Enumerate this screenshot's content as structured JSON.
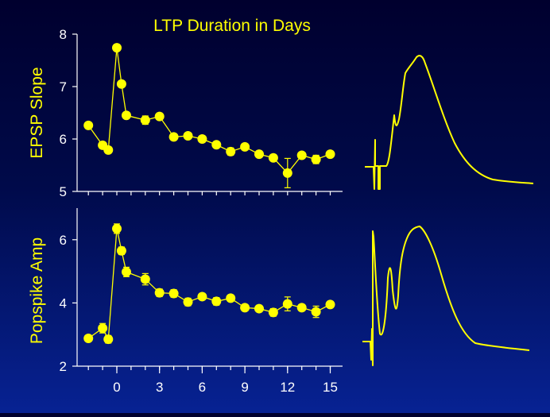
{
  "colors": {
    "accent": "#ffff00",
    "axis": "#ffffff",
    "background_top": "#00002e",
    "background_bottom": "#072293"
  },
  "title": "LTP Duration in Days",
  "chart_data": [
    {
      "type": "scatter",
      "connected": true,
      "error_bars": true,
      "ylabel": "EPSP Slope",
      "xlabel": "",
      "ylim": [
        5,
        8
      ],
      "yticks": [
        "5",
        "6",
        "7",
        "8"
      ],
      "xlim": [
        -2.5,
        16
      ],
      "series": [
        {
          "x": [
            -2,
            -1,
            -0.6,
            0,
            0.33,
            0.67,
            2,
            3,
            4,
            5,
            6,
            7,
            8,
            9,
            10,
            11,
            12,
            13,
            14,
            15
          ],
          "y": [
            6.26,
            5.88,
            5.79,
            7.74,
            7.05,
            6.45,
            6.36,
            6.43,
            6.04,
            6.06,
            6.0,
            5.89,
            5.76,
            5.85,
            5.71,
            5.64,
            5.35,
            5.69,
            5.61,
            5.71
          ],
          "err": [
            0.03,
            0.04,
            0.06,
            0.06,
            0.05,
            0.04,
            0.08,
            0.05,
            0.06,
            0.05,
            0.06,
            0.05,
            0.07,
            0.05,
            0.05,
            0.06,
            0.28,
            0.05,
            0.08,
            0.05
          ]
        }
      ]
    },
    {
      "type": "scatter",
      "connected": true,
      "error_bars": true,
      "ylabel": "Popspike Amp",
      "xlabel": "",
      "ylim": [
        2,
        7
      ],
      "yticks": [
        "2",
        "4",
        "6"
      ],
      "xlim": [
        -2.5,
        16
      ],
      "xticks": [
        "0",
        "3",
        "6",
        "9",
        "12",
        "15"
      ],
      "series": [
        {
          "x": [
            -2,
            -1,
            -0.6,
            0,
            0.33,
            0.67,
            2,
            3,
            4,
            5,
            6,
            7,
            8,
            9,
            10,
            11,
            12,
            13,
            14,
            15
          ],
          "y": [
            2.88,
            3.2,
            2.85,
            6.35,
            5.65,
            4.98,
            4.75,
            4.32,
            4.3,
            4.03,
            4.2,
            4.05,
            4.15,
            3.85,
            3.82,
            3.7,
            3.97,
            3.85,
            3.72,
            3.95
          ],
          "err": [
            0.08,
            0.15,
            0.12,
            0.15,
            0.12,
            0.15,
            0.18,
            0.12,
            0.12,
            0.12,
            0.1,
            0.12,
            0.1,
            0.1,
            0.1,
            0.12,
            0.22,
            0.1,
            0.18,
            0.1
          ]
        }
      ]
    }
  ]
}
